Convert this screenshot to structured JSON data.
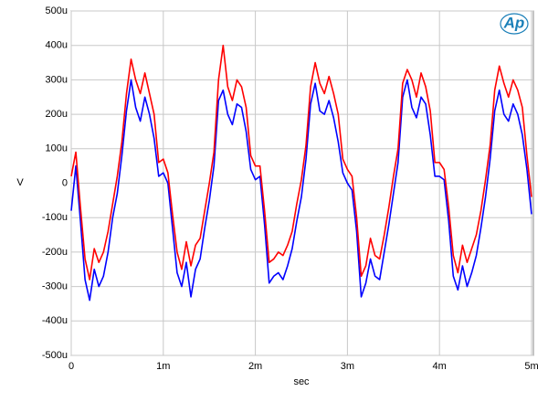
{
  "logo": "Ap",
  "chart_data": {
    "type": "line",
    "x_label": "sec",
    "y_label": "V",
    "x": [
      0,
      5e-05,
      0.0001,
      0.00015,
      0.0002,
      0.00025,
      0.0003,
      0.00035,
      0.0004,
      0.00045,
      0.0005,
      0.00055,
      0.0006,
      0.00065,
      0.0007,
      0.00075,
      0.0008,
      0.00085,
      0.0009,
      0.00095,
      0.001,
      0.00105,
      0.0011,
      0.00115,
      0.0012,
      0.00125,
      0.0013,
      0.00135,
      0.0014,
      0.00145,
      0.0015,
      0.00155,
      0.0016,
      0.00165,
      0.0017,
      0.00175,
      0.0018,
      0.00185,
      0.0019,
      0.00195,
      0.002,
      0.00205,
      0.0021,
      0.00215,
      0.0022,
      0.00225,
      0.0023,
      0.00235,
      0.0024,
      0.00245,
      0.0025,
      0.00255,
      0.0026,
      0.00265,
      0.0027,
      0.00275,
      0.0028,
      0.00285,
      0.0029,
      0.00295,
      0.003,
      0.00305,
      0.0031,
      0.00315,
      0.0032,
      0.00325,
      0.0033,
      0.00335,
      0.0034,
      0.00345,
      0.0035,
      0.00355,
      0.0036,
      0.00365,
      0.0037,
      0.00375,
      0.0038,
      0.00385,
      0.0039,
      0.00395,
      0.004,
      0.00405,
      0.0041,
      0.00415,
      0.0042,
      0.00425,
      0.0043,
      0.00435,
      0.0044,
      0.00445,
      0.0045,
      0.00455,
      0.0046,
      0.00465,
      0.0047,
      0.00475,
      0.0048,
      0.00485,
      0.0049,
      0.00495,
      0.005
    ],
    "series": [
      {
        "color": "#0000ff",
        "values": [
          -8e-05,
          5e-05,
          -0.00011,
          -0.00028,
          -0.00034,
          -0.00025,
          -0.0003,
          -0.00027,
          -0.0002,
          -0.0001,
          -3e-05,
          8e-05,
          0.00021,
          0.0003,
          0.00022,
          0.00018,
          0.00025,
          0.0002,
          0.00013,
          2e-05,
          3e-05,
          0,
          -0.00013,
          -0.00026,
          -0.0003,
          -0.00023,
          -0.00033,
          -0.00025,
          -0.00022,
          -0.00013,
          -5e-05,
          5e-05,
          0.00024,
          0.00027,
          0.0002,
          0.00017,
          0.00023,
          0.00022,
          0.00015,
          4e-05,
          1e-05,
          2e-05,
          -0.00012,
          -0.00029,
          -0.00027,
          -0.00026,
          -0.00028,
          -0.00024,
          -0.00019,
          -0.00011,
          -4e-05,
          7e-05,
          0.00023,
          0.00029,
          0.00021,
          0.0002,
          0.00024,
          0.00019,
          0.00012,
          3e-05,
          0,
          -2e-05,
          -0.00014,
          -0.00033,
          -0.00029,
          -0.00022,
          -0.00027,
          -0.00028,
          -0.0002,
          -0.00012,
          -3e-05,
          6e-05,
          0.00025,
          0.0003,
          0.00022,
          0.00019,
          0.00025,
          0.00023,
          0.00014,
          2e-05,
          2e-05,
          1e-05,
          -0.00011,
          -0.00027,
          -0.00031,
          -0.00024,
          -0.0003,
          -0.00026,
          -0.00021,
          -0.00013,
          -4e-05,
          7e-05,
          0.00021,
          0.00027,
          0.0002,
          0.00018,
          0.00023,
          0.0002,
          0.00014,
          4e-05,
          -9e-05
        ]
      },
      {
        "color": "#ff0000",
        "values": [
          2e-05,
          9e-05,
          -7e-05,
          -0.00022,
          -0.00028,
          -0.00019,
          -0.00023,
          -0.0002,
          -0.00014,
          -6e-05,
          2e-05,
          0.00012,
          0.00026,
          0.00036,
          0.0003,
          0.00026,
          0.00032,
          0.00026,
          0.0002,
          6e-05,
          7e-05,
          3e-05,
          -9e-05,
          -0.0002,
          -0.00025,
          -0.00017,
          -0.00024,
          -0.00018,
          -0.00016,
          -8e-05,
          0,
          9e-05,
          0.0003,
          0.0004,
          0.00028,
          0.00024,
          0.0003,
          0.00028,
          0.00022,
          8e-05,
          5e-05,
          5e-05,
          -8e-05,
          -0.00023,
          -0.00022,
          -0.0002,
          -0.00021,
          -0.00018,
          -0.00014,
          -6e-05,
          1e-05,
          0.00011,
          0.00028,
          0.00035,
          0.00029,
          0.00026,
          0.00031,
          0.00026,
          0.0002,
          7e-05,
          4e-05,
          2e-05,
          -0.0001,
          -0.00027,
          -0.00024,
          -0.00016,
          -0.00021,
          -0.00022,
          -0.00015,
          -7e-05,
          2e-05,
          0.0001,
          0.00029,
          0.00033,
          0.0003,
          0.00025,
          0.00032,
          0.00028,
          0.00021,
          6e-05,
          6e-05,
          4e-05,
          -7e-05,
          -0.00021,
          -0.00026,
          -0.00018,
          -0.00023,
          -0.00019,
          -0.00015,
          -8e-05,
          1e-05,
          0.00011,
          0.00027,
          0.00034,
          0.00029,
          0.00025,
          0.0003,
          0.00027,
          0.00022,
          8e-05,
          -4e-05
        ]
      }
    ],
    "xlim": [
      0,
      0.00502
    ],
    "xticks": [
      0,
      {
        "value": 0.001,
        "label": "1m"
      },
      {
        "value": 0.002,
        "label": "2m"
      },
      {
        "value": 0.003,
        "label": "3m"
      },
      {
        "value": 0.004,
        "label": "4m"
      },
      {
        "value": 0.005,
        "label": "5m"
      }
    ],
    "ylim": [
      -0.0005,
      0.0005
    ],
    "yticks": [
      {
        "value": 0.0005,
        "label": "500u"
      },
      {
        "value": 0.0004,
        "label": "400u"
      },
      {
        "value": 0.0003,
        "label": "300u"
      },
      {
        "value": 0.0002,
        "label": "200u"
      },
      {
        "value": 0.0001,
        "label": "100u"
      },
      0,
      {
        "value": -0.0001,
        "label": "-100u"
      },
      {
        "value": -0.0002,
        "label": "-200u"
      },
      {
        "value": -0.0003,
        "label": "-300u"
      },
      {
        "value": -0.0004,
        "label": "-400u"
      },
      {
        "value": -0.0005,
        "label": "-500u"
      }
    ],
    "grid": true
  }
}
